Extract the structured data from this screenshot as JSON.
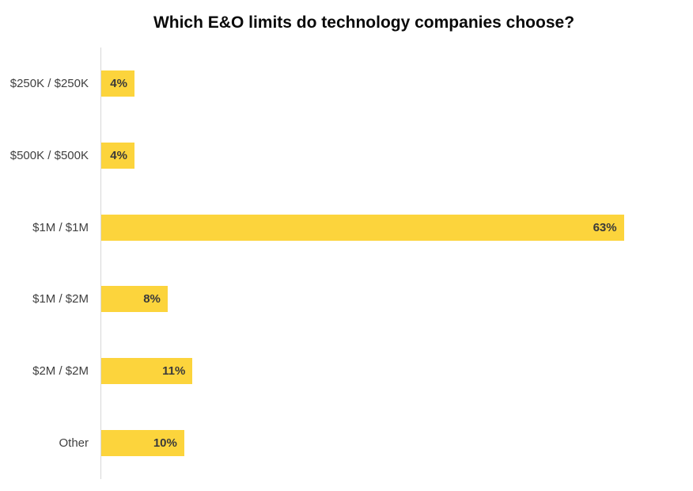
{
  "title": "Which E&O limits do technology companies choose?",
  "chart_data": {
    "type": "bar",
    "orientation": "horizontal",
    "title": "Which E&O limits do technology companies choose?",
    "categories": [
      "$250K / $250K",
      "$500K / $500K",
      "$1M / $1M",
      "$1M / $2M",
      "$2M / $2M",
      "Other"
    ],
    "values": [
      4,
      4,
      63,
      8,
      11,
      10
    ],
    "labels": [
      "4%",
      "4%",
      "63%",
      "8%",
      "11%",
      "10%"
    ],
    "xlabel": "",
    "ylabel": "",
    "xlim": [
      0,
      70
    ],
    "grid": false,
    "legend": "none",
    "data_labels_position": "inside-end",
    "bar_color": "#fcd43c",
    "data_label_color": "#3a3a3a",
    "category_label_color": "#404040",
    "axis_line_color": "#d8d8d8",
    "title_color": "#0a0a0a"
  }
}
